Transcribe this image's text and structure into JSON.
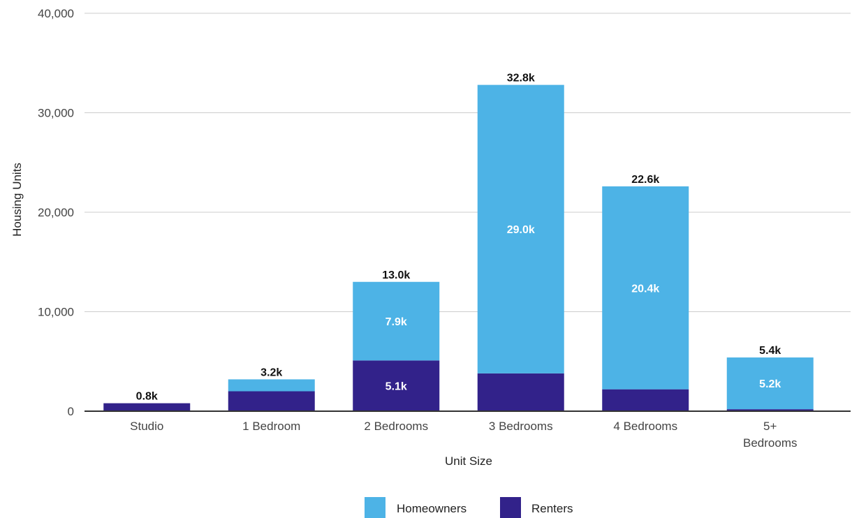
{
  "chart_data": {
    "type": "bar",
    "stacked": true,
    "title": "",
    "xlabel": "Unit Size",
    "ylabel": "Housing Units",
    "ylim": [
      0,
      40000
    ],
    "y_ticks": [
      0,
      10000,
      20000,
      30000,
      40000
    ],
    "y_tick_labels": [
      "0",
      "10,000",
      "20,000",
      "30,000",
      "40,000"
    ],
    "grid": true,
    "legend_position": "bottom",
    "categories": [
      [
        "Studio"
      ],
      [
        "1 Bedroom"
      ],
      [
        "2 Bedrooms"
      ],
      [
        "3 Bedrooms"
      ],
      [
        "4 Bedrooms"
      ],
      [
        "5+",
        "Bedrooms"
      ]
    ],
    "series": [
      {
        "name": "Renters",
        "color": "#32228a",
        "values": [
          800,
          2000,
          5100,
          3800,
          2200,
          200
        ],
        "labels": [
          "",
          "",
          "5.1k",
          "",
          "",
          ""
        ]
      },
      {
        "name": "Homeowners",
        "color": "#4db3e6",
        "values": [
          0,
          1200,
          7900,
          29000,
          20400,
          5200
        ],
        "labels": [
          "",
          "",
          "7.9k",
          "29.0k",
          "20.4k",
          "5.2k"
        ]
      }
    ],
    "totals": [
      800,
      3200,
      13000,
      32800,
      22600,
      5400
    ],
    "total_labels": [
      "0.8k",
      "3.2k",
      "13.0k",
      "32.8k",
      "22.6k",
      "5.4k"
    ],
    "legend": [
      {
        "name": "Homeowners",
        "color": "#4db3e6"
      },
      {
        "name": "Renters",
        "color": "#32228a"
      }
    ]
  }
}
